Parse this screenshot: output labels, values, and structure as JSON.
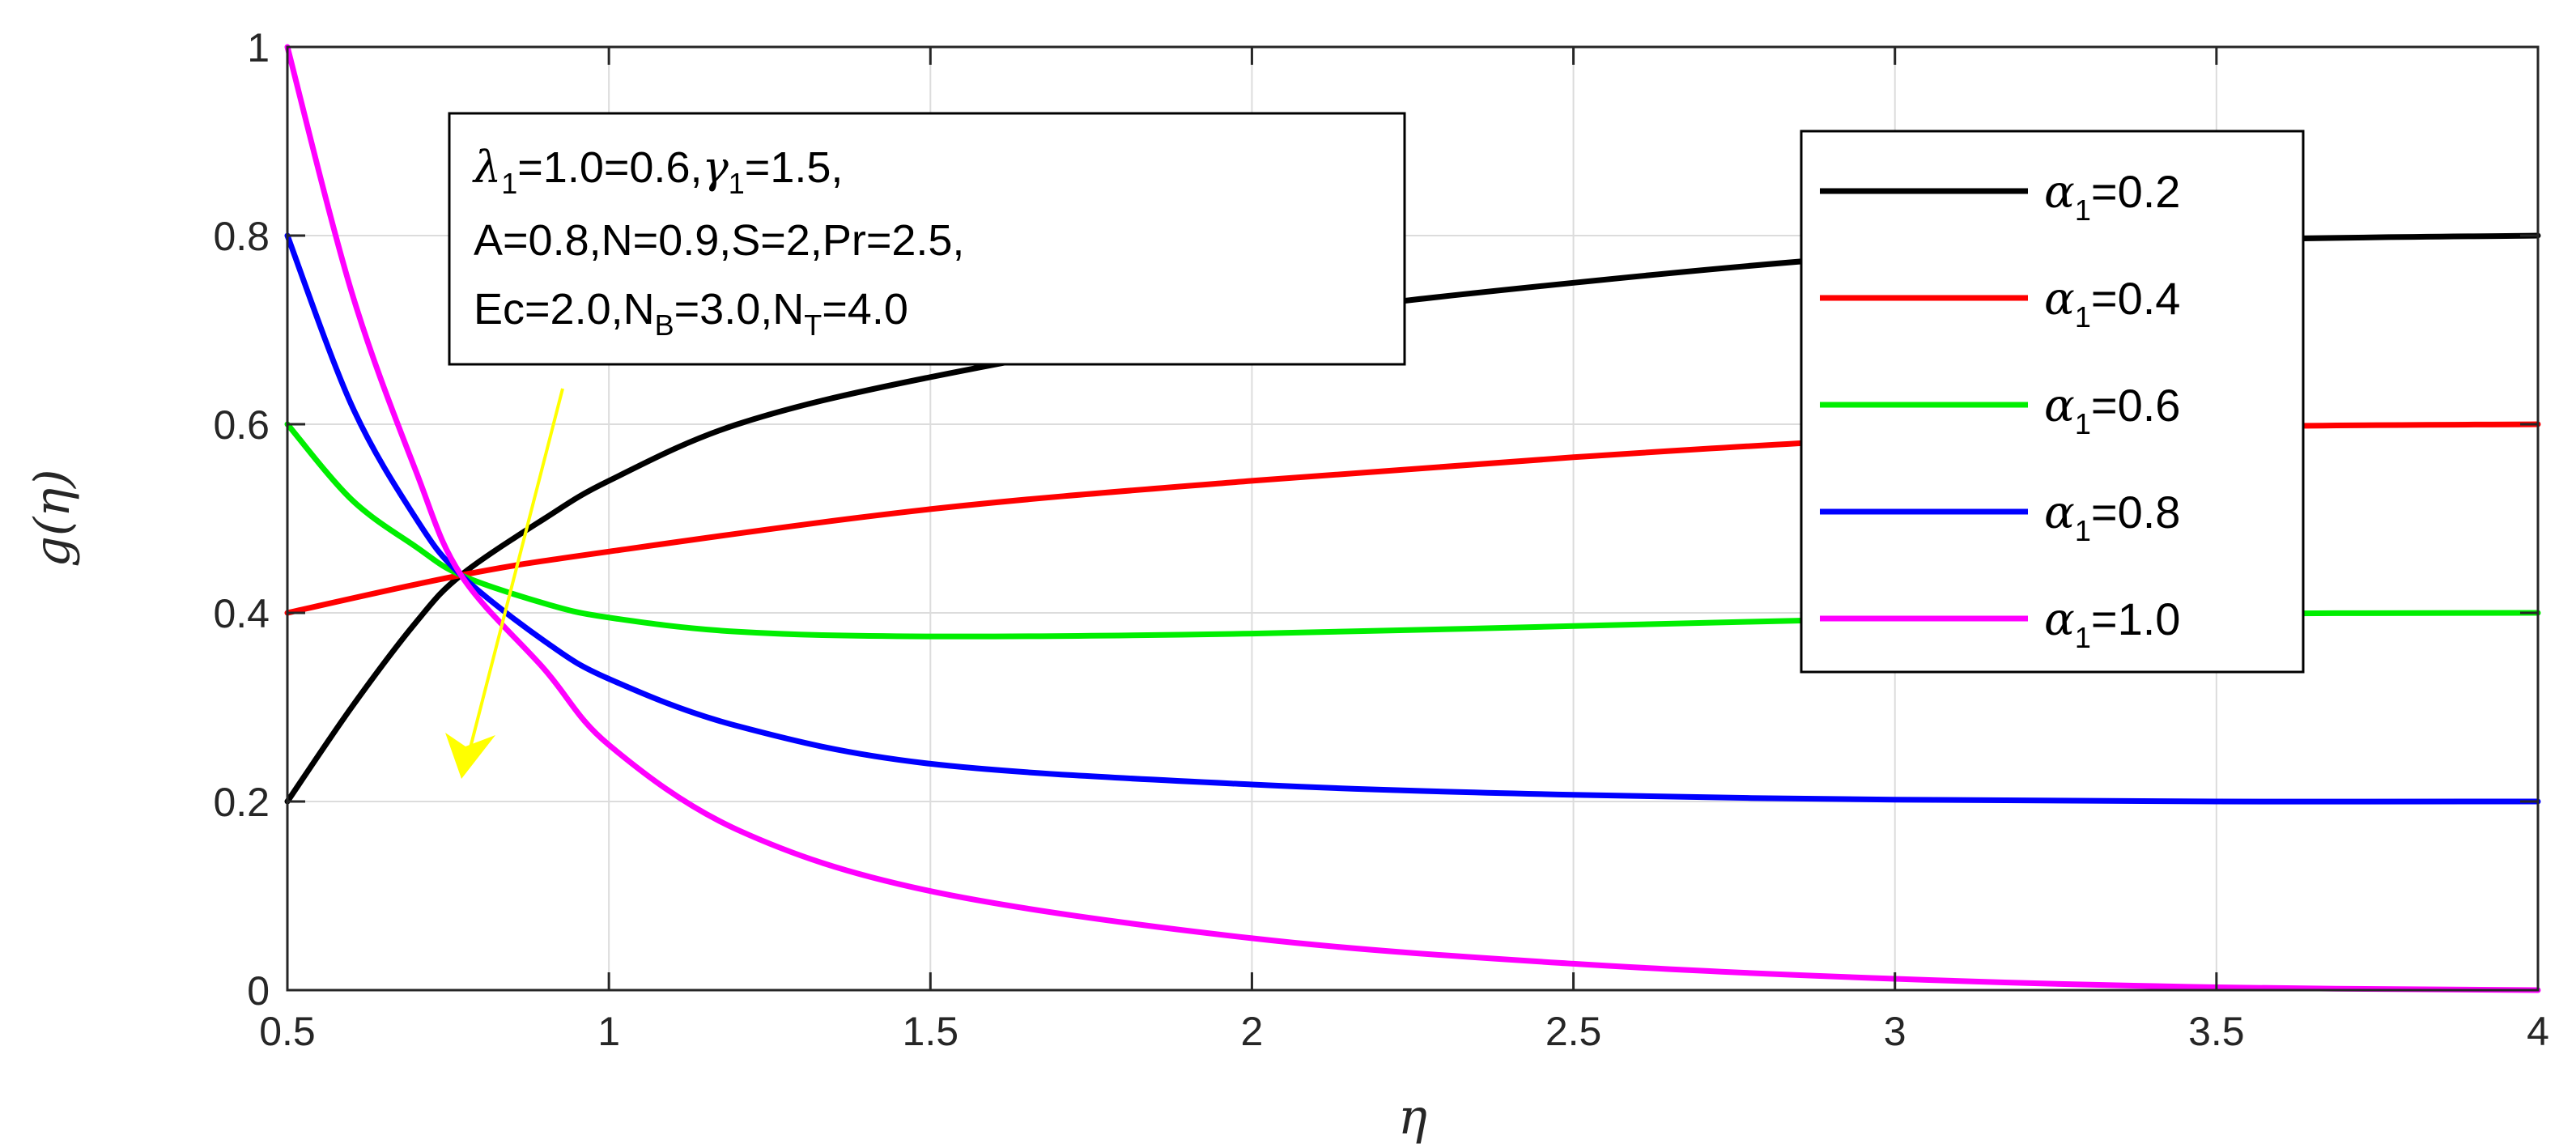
{
  "chart_data": {
    "type": "line",
    "xlabel": "η",
    "ylabel": "g(η)",
    "xlim": [
      0.5,
      4
    ],
    "ylim": [
      0,
      1
    ],
    "xticks": [
      "0.5",
      "1",
      "1.5",
      "2",
      "2.5",
      "3",
      "3.5",
      "4"
    ],
    "yticks": [
      "0",
      "0.2",
      "0.4",
      "0.6",
      "0.8",
      "1"
    ],
    "grid": true,
    "legend_position": "top-right",
    "annotation": {
      "line1": {
        "lambda_sym": "λ",
        "lambda_sub": "1",
        "mid": "=1.0=0.6,",
        "gamma_sym": "γ",
        "gamma_sub": "1",
        "end": "=1.5,"
      },
      "line2": "A=0.8,N=0.9,S=2,Pr=2.5,",
      "line3": {
        "a": "Ec=2.0,N",
        "b_sub": "B",
        "c": "=3.0,N",
        "t_sub": "T",
        "d": "=4.0"
      },
      "arrow_color": "#ffff00"
    },
    "series": [
      {
        "legend_sym": "α",
        "legend_sub": "1",
        "legend_value": "=0.2",
        "color": "#000000",
        "x": [
          0.5,
          0.6,
          0.7,
          0.77,
          0.9,
          1.0,
          1.2,
          1.5,
          2.0,
          2.5,
          3.0,
          3.5,
          4.0
        ],
        "y": [
          0.2,
          0.3,
          0.39,
          0.44,
          0.5,
          0.54,
          0.6,
          0.65,
          0.71,
          0.75,
          0.78,
          0.795,
          0.8
        ]
      },
      {
        "legend_sym": "α",
        "legend_sub": "1",
        "legend_value": "=0.4",
        "color": "#ff0000",
        "x": [
          0.5,
          0.77,
          1.0,
          1.5,
          2.0,
          2.5,
          3.0,
          3.5,
          4.0
        ],
        "y": [
          0.4,
          0.44,
          0.465,
          0.51,
          0.54,
          0.565,
          0.585,
          0.597,
          0.6
        ]
      },
      {
        "legend_sym": "α",
        "legend_sub": "1",
        "legend_value": "=0.6",
        "color": "#00ee00",
        "x": [
          0.5,
          0.6,
          0.7,
          0.77,
          0.9,
          1.0,
          1.2,
          1.5,
          2.0,
          2.5,
          3.0,
          3.5,
          4.0
        ],
        "y": [
          0.6,
          0.52,
          0.47,
          0.44,
          0.41,
          0.395,
          0.38,
          0.375,
          0.378,
          0.386,
          0.394,
          0.399,
          0.4
        ]
      },
      {
        "legend_sym": "α",
        "legend_sub": "1",
        "legend_value": "=0.8",
        "color": "#0000ff",
        "x": [
          0.5,
          0.6,
          0.7,
          0.77,
          0.9,
          1.0,
          1.2,
          1.5,
          2.0,
          2.5,
          3.0,
          3.5,
          4.0
        ],
        "y": [
          0.8,
          0.62,
          0.5,
          0.44,
          0.37,
          0.33,
          0.28,
          0.24,
          0.218,
          0.207,
          0.202,
          0.2,
          0.2
        ]
      },
      {
        "legend_sym": "α",
        "legend_sub": "1",
        "legend_value": "=1.0",
        "color": "#ff00ff",
        "x": [
          0.5,
          0.6,
          0.7,
          0.77,
          0.9,
          1.0,
          1.2,
          1.5,
          2.0,
          2.5,
          3.0,
          3.5,
          4.0
        ],
        "y": [
          1.0,
          0.74,
          0.55,
          0.44,
          0.34,
          0.26,
          0.17,
          0.105,
          0.055,
          0.028,
          0.012,
          0.003,
          0.0
        ]
      }
    ]
  }
}
